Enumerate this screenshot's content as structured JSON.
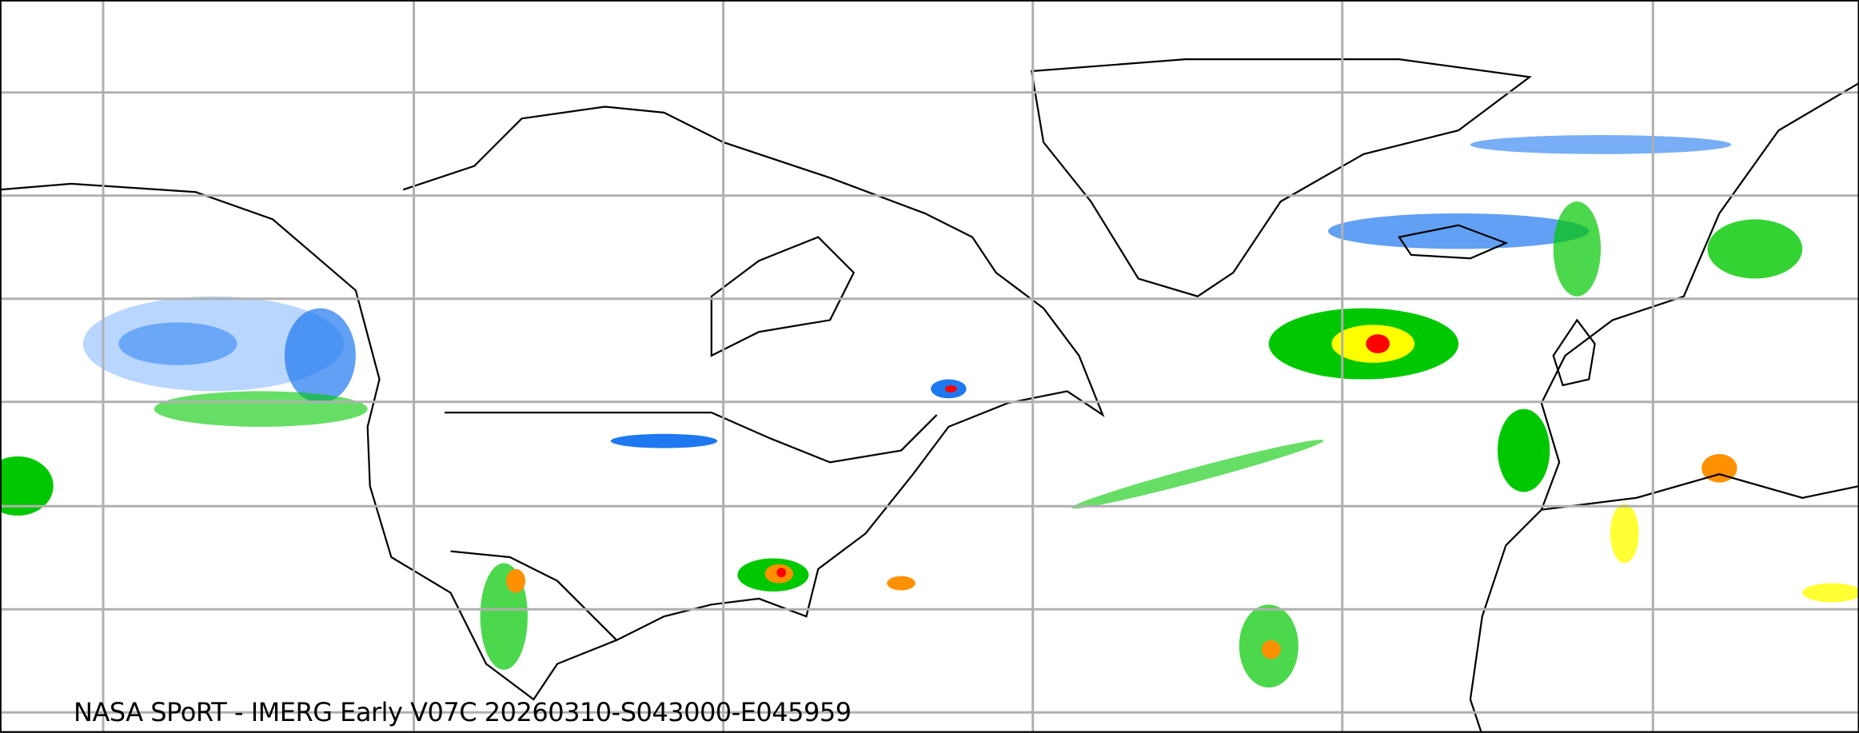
{
  "map": {
    "caption": "NASA SPoRT - IMERG Early V07C 20260310-S043000-E045959",
    "projection": "equirectangular",
    "gridlines": true,
    "colors": {
      "grid": "#b0b0b0",
      "coastline": "#000000",
      "precip_light_blue": "#a8ccff",
      "precip_blue": "#1e78f0",
      "precip_dark_green": "#006400",
      "precip_green": "#00c800",
      "precip_yellow": "#ffff00",
      "precip_orange": "#ff9000",
      "precip_red": "#ff0000"
    }
  }
}
